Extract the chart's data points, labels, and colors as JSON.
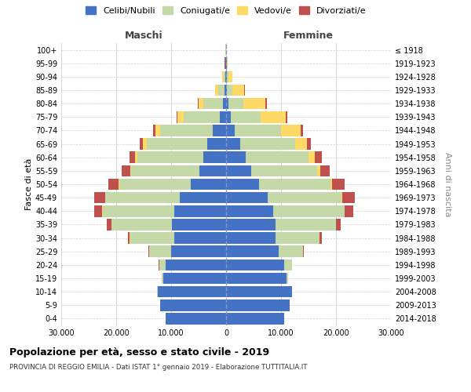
{
  "age_groups": [
    "0-4",
    "5-9",
    "10-14",
    "15-19",
    "20-24",
    "25-29",
    "30-34",
    "35-39",
    "40-44",
    "45-49",
    "50-54",
    "55-59",
    "60-64",
    "65-69",
    "70-74",
    "75-79",
    "80-84",
    "85-89",
    "90-94",
    "95-99",
    "100+"
  ],
  "birth_years": [
    "2014-2018",
    "2009-2013",
    "2004-2008",
    "1999-2003",
    "1994-1998",
    "1989-1993",
    "1984-1988",
    "1979-1983",
    "1974-1978",
    "1969-1973",
    "1964-1968",
    "1959-1963",
    "1954-1958",
    "1949-1953",
    "1944-1948",
    "1939-1943",
    "1934-1938",
    "1929-1933",
    "1924-1928",
    "1919-1923",
    "≤ 1918"
  ],
  "maschi": {
    "celibi": [
      11000,
      12000,
      12500,
      11500,
      11000,
      10000,
      9500,
      9800,
      9500,
      8500,
      6500,
      4800,
      4200,
      3500,
      2500,
      1200,
      600,
      250,
      150,
      80,
      50
    ],
    "coniugati": [
      5,
      10,
      30,
      200,
      1200,
      4000,
      8000,
      11000,
      13000,
      13500,
      13000,
      12500,
      12000,
      11000,
      9500,
      6500,
      3500,
      1200,
      350,
      100,
      30
    ],
    "vedovi": [
      0,
      0,
      0,
      1,
      3,
      5,
      10,
      15,
      30,
      50,
      100,
      200,
      400,
      600,
      900,
      1100,
      900,
      500,
      150,
      30,
      10
    ],
    "divorziati": [
      0,
      1,
      2,
      10,
      50,
      150,
      400,
      900,
      1500,
      1900,
      1800,
      1500,
      1000,
      600,
      400,
      250,
      150,
      80,
      30,
      10,
      5
    ]
  },
  "femmine": {
    "nubili": [
      10500,
      11500,
      12000,
      11000,
      10500,
      9500,
      9000,
      9000,
      8500,
      7500,
      6000,
      4500,
      3500,
      2500,
      1500,
      800,
      400,
      200,
      120,
      80,
      50
    ],
    "coniugate": [
      5,
      10,
      40,
      300,
      1500,
      4500,
      8000,
      11000,
      13000,
      13500,
      13000,
      12000,
      11500,
      10000,
      8500,
      5500,
      2800,
      900,
      300,
      80,
      20
    ],
    "vedove": [
      0,
      0,
      0,
      2,
      5,
      10,
      25,
      50,
      100,
      200,
      300,
      600,
      1200,
      2200,
      3500,
      4500,
      4000,
      2200,
      700,
      150,
      30
    ],
    "divorziate": [
      0,
      0,
      2,
      8,
      40,
      120,
      350,
      800,
      1500,
      2200,
      2200,
      1800,
      1200,
      700,
      500,
      350,
      200,
      100,
      30,
      10,
      5
    ]
  },
  "colors": {
    "celibi": "#4472C4",
    "coniugati": "#C5D9A8",
    "vedovi": "#FFD966",
    "divorziati": "#C0504D"
  },
  "xlim": 30000,
  "title": "Popolazione per età, sesso e stato civile - 2019",
  "subtitle": "PROVINCIA DI REGGIO EMILIA - Dati ISTAT 1° gennaio 2019 - Elaborazione TUTTITALIA.IT",
  "xlabel_left": "Maschi",
  "xlabel_right": "Femmine",
  "ylabel_left": "Fasce di età",
  "ylabel_right": "Anni di nascita",
  "legend_labels": [
    "Celibi/Nubili",
    "Coniugati/e",
    "Vedovi/e",
    "Divorziati/e"
  ],
  "background_color": "#ffffff",
  "grid_color": "#d0d0d0"
}
